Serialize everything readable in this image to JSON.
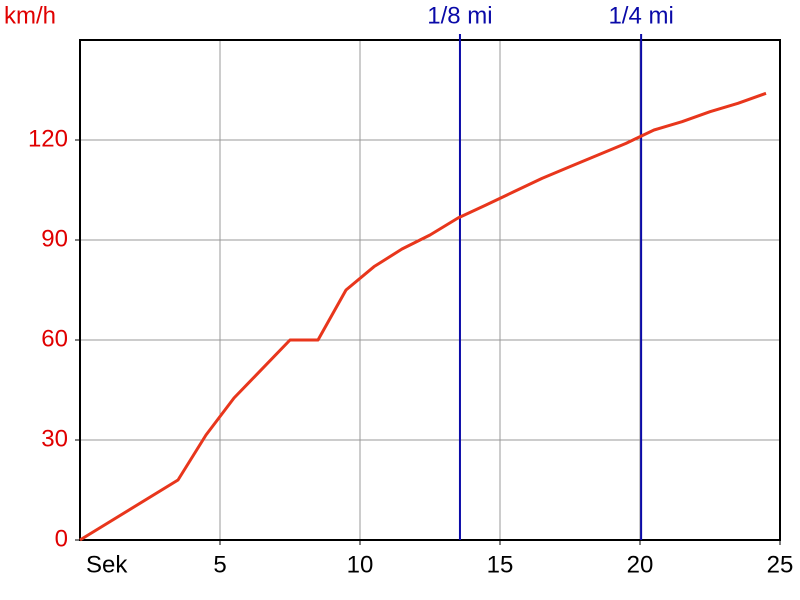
{
  "chart_data": {
    "type": "line",
    "y_label": "km/h",
    "x_label": "Sek",
    "x": [
      0,
      3.5,
      4.5,
      5.5,
      7.5,
      8.5,
      9.5,
      10.5,
      11.5,
      12.5,
      13.5,
      14.5,
      15.5,
      16.5,
      17.5,
      18.5,
      19.5,
      20.5,
      21.5,
      22.5,
      23.5,
      24.5
    ],
    "series": [
      {
        "color": "#e8361c",
        "values": [
          0,
          18,
          31.5,
          42.6,
          60,
          60,
          75,
          82,
          87.3,
          91.5,
          96.6,
          100.5,
          104.5,
          108.5,
          112,
          115.5,
          119,
          123,
          125.5,
          128.5,
          131,
          134
        ]
      }
    ],
    "markers": [
      {
        "x": 13.57,
        "label": "1/8 mi"
      },
      {
        "x": 20.04,
        "label": "1/4 mi"
      }
    ],
    "marker_color": "#0a0aa8",
    "xlim": [
      0,
      25
    ],
    "ylim": [
      0,
      150
    ],
    "xticks": [
      5,
      10,
      15,
      20,
      25
    ],
    "yticks": [
      0,
      30,
      60,
      90,
      120
    ],
    "grid": true
  }
}
